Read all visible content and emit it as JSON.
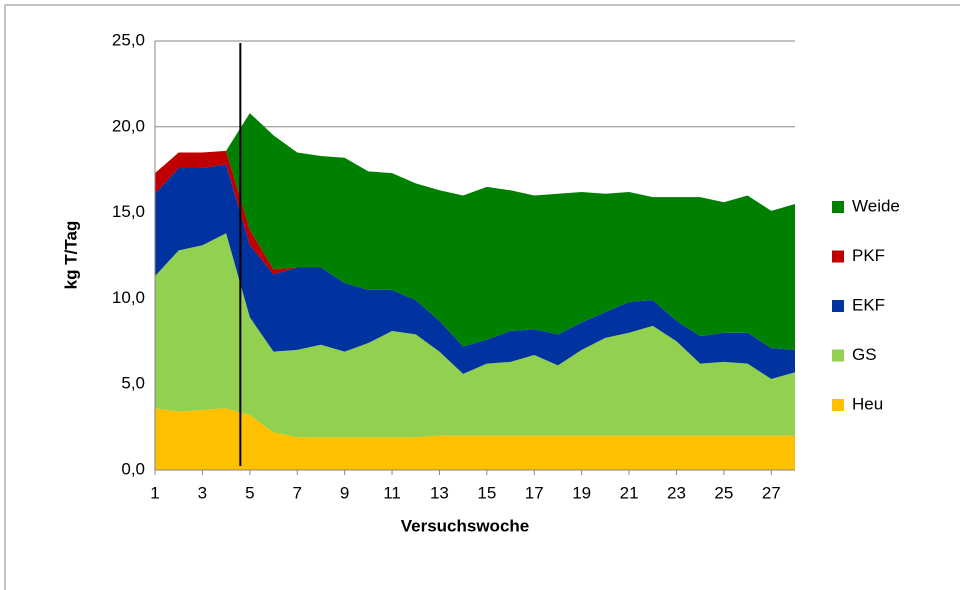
{
  "chart_data": {
    "type": "stacked_area",
    "x_label": "Versuchswoche",
    "y_label": "kg T/Tag",
    "x": [
      1,
      2,
      3,
      4,
      5,
      6,
      7,
      8,
      9,
      10,
      11,
      12,
      13,
      14,
      15,
      16,
      17,
      18,
      19,
      20,
      21,
      22,
      23,
      24,
      25,
      26,
      27,
      28
    ],
    "series": [
      {
        "name": "Heu",
        "color": "#ffc000",
        "values": [
          3.6,
          3.4,
          3.5,
          3.6,
          3.2,
          2.2,
          1.9,
          1.9,
          1.9,
          1.9,
          1.9,
          1.9,
          2.0,
          2.0,
          2.0,
          2.0,
          2.0,
          2.0,
          2.0,
          2.0,
          2.0,
          2.0,
          2.0,
          2.0,
          2.0,
          2.0,
          2.0,
          2.0
        ]
      },
      {
        "name": "GS",
        "color": "#92d050",
        "values": [
          7.7,
          9.4,
          9.6,
          10.2,
          5.7,
          4.7,
          5.1,
          5.4,
          5.0,
          5.5,
          6.2,
          6.0,
          4.9,
          3.6,
          4.2,
          4.3,
          4.7,
          4.1,
          5.0,
          5.7,
          6.0,
          6.4,
          5.5,
          4.2,
          4.3,
          4.2,
          3.3,
          3.7
        ]
      },
      {
        "name": "EKF",
        "color": "#0033a0",
        "values": [
          4.8,
          4.8,
          4.5,
          4.0,
          4.2,
          4.5,
          4.8,
          4.5,
          4.0,
          3.1,
          2.4,
          2.0,
          1.8,
          1.6,
          1.4,
          1.8,
          1.5,
          1.8,
          1.6,
          1.5,
          1.8,
          1.5,
          1.2,
          1.6,
          1.7,
          1.8,
          1.8,
          1.3
        ]
      },
      {
        "name": "PKF",
        "color": "#c00000",
        "values": [
          1.2,
          0.9,
          0.9,
          0.8,
          0.9,
          0.3,
          0,
          0,
          0,
          0,
          0,
          0,
          0,
          0,
          0,
          0,
          0,
          0,
          0,
          0,
          0,
          0,
          0,
          0,
          0,
          0,
          0,
          0
        ]
      },
      {
        "name": "Weide",
        "color": "#008000",
        "values": [
          0,
          0,
          0,
          0,
          6.8,
          7.8,
          6.7,
          6.5,
          7.3,
          6.9,
          6.8,
          6.8,
          7.6,
          8.8,
          8.9,
          8.2,
          7.8,
          8.2,
          7.6,
          6.9,
          6.4,
          6.0,
          7.2,
          8.1,
          7.6,
          8.0,
          8.0,
          8.5
        ]
      }
    ],
    "xlim": [
      1,
      28
    ],
    "xticks": [
      1,
      3,
      5,
      7,
      9,
      11,
      13,
      15,
      17,
      19,
      21,
      23,
      25,
      27
    ],
    "ylim": [
      0,
      25
    ],
    "yticks": [
      {
        "value": 0,
        "label": "0,0"
      },
      {
        "value": 5,
        "label": "5,0"
      },
      {
        "value": 10,
        "label": "10,0"
      },
      {
        "value": 15,
        "label": "15,0"
      },
      {
        "value": 20,
        "label": "20,0"
      },
      {
        "value": 25,
        "label": "25,0"
      }
    ],
    "grid": true,
    "legend": "right",
    "vline_x": 4.6
  }
}
